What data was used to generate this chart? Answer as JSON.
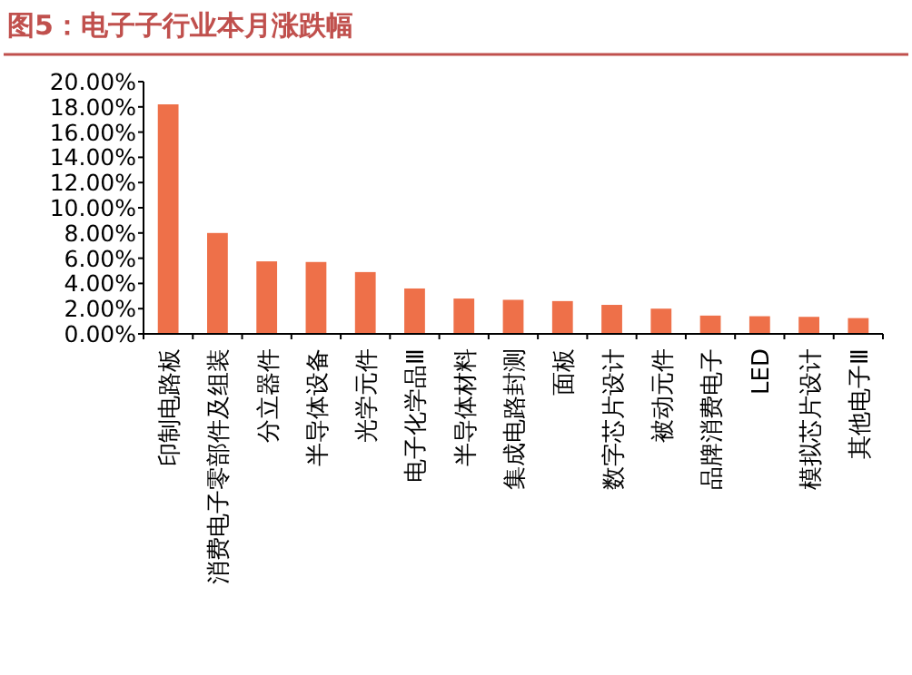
{
  "chart_data": {
    "type": "bar",
    "title": "图5：电子子行业本月涨跌幅",
    "categories": [
      "印制电路板",
      "消费电子零部件及组装",
      "分立器件",
      "半导体设备",
      "光学元件",
      "电子化学品Ⅲ",
      "半导体材料",
      "集成电路封测",
      "面板",
      "数字芯片设计",
      "被动元件",
      "品牌消费电子",
      "LED",
      "模拟芯片设计",
      "其他电子Ⅲ"
    ],
    "values": [
      18.2,
      8.0,
      5.75,
      5.7,
      4.9,
      3.6,
      2.8,
      2.7,
      2.6,
      2.3,
      2.0,
      1.45,
      1.4,
      1.35,
      1.25
    ],
    "color": "#ee7049",
    "ylim": [
      0,
      20
    ],
    "yticks": [
      {
        "value": 0,
        "label": "0.00%"
      },
      {
        "value": 2,
        "label": "2.00%"
      },
      {
        "value": 4,
        "label": "4.00%"
      },
      {
        "value": 6,
        "label": "6.00%"
      },
      {
        "value": 8,
        "label": "8.00%"
      },
      {
        "value": 10,
        "label": "10.00%"
      },
      {
        "value": 12,
        "label": "12.00%"
      },
      {
        "value": 14,
        "label": "14.00%"
      },
      {
        "value": 16,
        "label": "16.00%"
      },
      {
        "value": 18,
        "label": "18.00%"
      },
      {
        "value": 20,
        "label": "20.00%"
      }
    ]
  }
}
